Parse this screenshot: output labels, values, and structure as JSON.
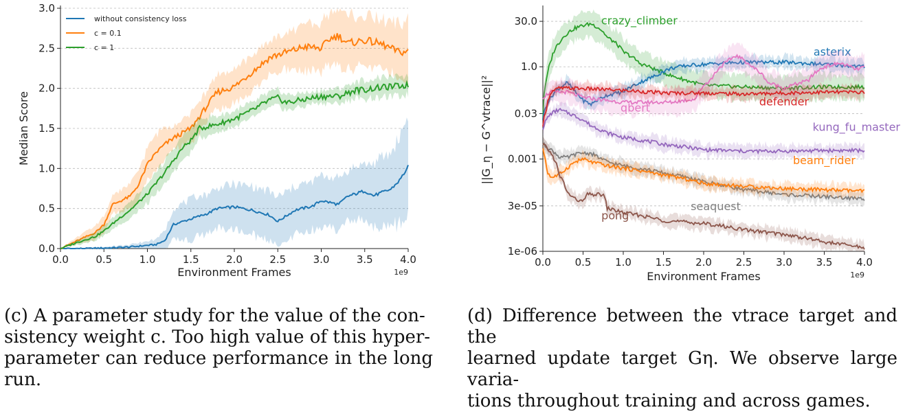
{
  "chart_data": [
    {
      "type": "line",
      "id": "c",
      "xlabel": "Environment Frames",
      "ylabel": "Median Score",
      "x_scale_note": "1e9",
      "xlim": [
        0.0,
        4.0
      ],
      "ylim": [
        0.0,
        3.0
      ],
      "xticks": [
        "0.0",
        "0.5",
        "1.0",
        "1.5",
        "2.0",
        "2.5",
        "3.0",
        "3.5",
        "4.0"
      ],
      "yticks": [
        "0.0",
        "0.5",
        "1.0",
        "1.5",
        "2.0",
        "2.5",
        "3.0"
      ],
      "grid": "horizontal dashed",
      "legend_position": "top-left",
      "series": [
        {
          "name": "without consistency loss",
          "color": "#1f77b4",
          "x": [
            0,
            0.3,
            0.6,
            0.8,
            1.0,
            1.1,
            1.2,
            1.3,
            1.5,
            1.7,
            1.8,
            2.0,
            2.2,
            2.4,
            2.5,
            2.7,
            2.9,
            3.0,
            3.2,
            3.3,
            3.5,
            3.6,
            3.8,
            3.9,
            4.0
          ],
          "y": [
            0,
            0.0,
            0.01,
            0.02,
            0.04,
            0.05,
            0.1,
            0.3,
            0.37,
            0.44,
            0.5,
            0.52,
            0.48,
            0.42,
            0.34,
            0.48,
            0.53,
            0.6,
            0.55,
            0.65,
            0.72,
            0.66,
            0.74,
            0.85,
            1.02
          ],
          "band": [
            0,
            0.01,
            0.02,
            0.03,
            0.05,
            0.07,
            0.12,
            0.2,
            0.25,
            0.25,
            0.25,
            0.28,
            0.3,
            0.3,
            0.3,
            0.3,
            0.3,
            0.32,
            0.32,
            0.32,
            0.35,
            0.4,
            0.45,
            0.55,
            0.65
          ]
        },
        {
          "name": "c = 0.1",
          "color": "#ff7f0e",
          "x": [
            0,
            0.2,
            0.4,
            0.5,
            0.6,
            0.8,
            0.9,
            1.0,
            1.1,
            1.2,
            1.3,
            1.5,
            1.7,
            1.8,
            2.0,
            2.2,
            2.4,
            2.5,
            2.7,
            2.8,
            3.0,
            3.1,
            3.2,
            3.3,
            3.5,
            3.7,
            3.9,
            4.0
          ],
          "y": [
            0,
            0.1,
            0.2,
            0.3,
            0.55,
            0.65,
            0.8,
            1.05,
            1.2,
            1.3,
            1.38,
            1.5,
            1.8,
            1.95,
            2.02,
            2.2,
            2.38,
            2.42,
            2.48,
            2.52,
            2.5,
            2.62,
            2.66,
            2.56,
            2.6,
            2.55,
            2.45,
            2.46
          ],
          "band": [
            0,
            0.05,
            0.08,
            0.1,
            0.12,
            0.15,
            0.18,
            0.2,
            0.22,
            0.22,
            0.15,
            0.18,
            0.2,
            0.2,
            0.22,
            0.22,
            0.22,
            0.22,
            0.25,
            0.28,
            0.3,
            0.32,
            0.35,
            0.35,
            0.3,
            0.3,
            0.35,
            0.4
          ]
        },
        {
          "name": "c = 1",
          "color": "#2ca02c",
          "x": [
            0,
            0.2,
            0.4,
            0.5,
            0.7,
            0.8,
            1.0,
            1.2,
            1.4,
            1.5,
            1.6,
            1.8,
            2.0,
            2.2,
            2.4,
            2.5,
            2.6,
            2.8,
            3.0,
            3.2,
            3.4,
            3.5,
            3.6,
            3.8,
            4.0
          ],
          "y": [
            0,
            0.08,
            0.15,
            0.22,
            0.4,
            0.48,
            0.68,
            0.95,
            1.25,
            1.35,
            1.5,
            1.55,
            1.62,
            1.72,
            1.85,
            1.88,
            1.82,
            1.86,
            1.9,
            1.9,
            1.98,
            1.98,
            2.0,
            2.02,
            2.04
          ],
          "band": [
            0,
            0.03,
            0.05,
            0.06,
            0.08,
            0.1,
            0.12,
            0.15,
            0.15,
            0.15,
            0.12,
            0.1,
            0.1,
            0.1,
            0.1,
            0.1,
            0.1,
            0.08,
            0.08,
            0.1,
            0.1,
            0.12,
            0.12,
            0.12,
            0.12
          ]
        }
      ]
    },
    {
      "type": "line",
      "id": "d",
      "xlabel": "Environment Frames",
      "ylabel": "||G_η − G^vtrace||²",
      "x_scale_note": "1e9",
      "xlim": [
        0.0,
        4.0
      ],
      "yscale": "log",
      "ylim": [
        1e-06,
        80
      ],
      "xticks": [
        "0.0",
        "0.5",
        "1.0",
        "1.5",
        "2.0",
        "2.5",
        "3.0",
        "3.5",
        "4.0"
      ],
      "yticks": [
        {
          "label": "30.0",
          "value": 30
        },
        {
          "label": "1.0",
          "value": 1
        },
        {
          "label": "0.03",
          "value": 0.03
        },
        {
          "label": "0.001",
          "value": 0.001
        },
        {
          "label": "3e-05",
          "value": 3e-05
        },
        {
          "label": "1e-06",
          "value": 1e-06
        }
      ],
      "grid": "horizontal dashed",
      "series": [
        {
          "name": "crazy_climber",
          "color": "#2ca02c",
          "x": [
            0,
            0.05,
            0.1,
            0.2,
            0.3,
            0.4,
            0.5,
            0.6,
            0.7,
            0.8,
            1.0,
            1.2,
            1.4,
            1.6,
            1.8,
            2.0,
            2.5,
            3.0,
            3.5,
            4.0
          ],
          "y": [
            0.02,
            0.4,
            1.5,
            6,
            12,
            18,
            22,
            25,
            18,
            9,
            3,
            1.3,
            0.8,
            0.5,
            0.35,
            0.25,
            0.22,
            0.2,
            0.22,
            0.22
          ],
          "label_at": [
            1.2,
            24
          ]
        },
        {
          "name": "asterix",
          "color": "#1f77b4",
          "x": [
            0,
            0.1,
            0.2,
            0.3,
            0.4,
            0.5,
            0.6,
            0.8,
            1.0,
            1.2,
            1.4,
            1.6,
            1.8,
            2.0,
            2.2,
            2.5,
            3.0,
            3.5,
            4.0
          ],
          "y": [
            0.02,
            0.1,
            0.2,
            0.3,
            0.15,
            0.08,
            0.06,
            0.12,
            0.15,
            0.3,
            0.5,
            0.9,
            1.1,
            1.2,
            1.3,
            1.4,
            1.4,
            1.2,
            1.0
          ],
          "label_at": [
            3.6,
            2.3
          ]
        },
        {
          "name": "qbert",
          "color": "#e377c2",
          "x": [
            0,
            0.1,
            0.3,
            0.5,
            0.8,
            1.0,
            1.3,
            1.6,
            1.9,
            2.1,
            2.3,
            2.4,
            2.6,
            2.8,
            3.0,
            3.3,
            3.5,
            3.7,
            3.9,
            4.0
          ],
          "y": [
            0.1,
            0.15,
            0.15,
            0.1,
            0.08,
            0.07,
            0.07,
            0.07,
            0.09,
            0.4,
            1.5,
            2.3,
            1.0,
            0.3,
            0.2,
            0.35,
            1.0,
            1.3,
            0.8,
            1.0
          ],
          "label_at": [
            1.15,
            0.035
          ]
        },
        {
          "name": "defender",
          "color": "#d62728",
          "x": [
            0,
            0.05,
            0.1,
            0.2,
            0.4,
            0.6,
            0.8,
            1.0,
            1.5,
            2.0,
            2.5,
            3.0,
            3.5,
            4.0
          ],
          "y": [
            0.01,
            0.05,
            0.15,
            0.2,
            0.2,
            0.19,
            0.18,
            0.17,
            0.14,
            0.14,
            0.13,
            0.14,
            0.15,
            0.15
          ],
          "label_at": [
            3.0,
            0.055
          ]
        },
        {
          "name": "kung_fu_master",
          "color": "#9467bd",
          "x": [
            0,
            0.1,
            0.2,
            0.4,
            0.6,
            0.8,
            1.0,
            1.5,
            2.0,
            2.5,
            3.0,
            3.5,
            4.0
          ],
          "y": [
            0.01,
            0.03,
            0.04,
            0.025,
            0.012,
            0.007,
            0.005,
            0.003,
            0.002,
            0.0018,
            0.0018,
            0.0019,
            0.0019
          ],
          "label_at": [
            3.9,
            0.0082
          ]
        },
        {
          "name": "seaquest",
          "color": "#7f7f7f",
          "x": [
            0,
            0.1,
            0.2,
            0.3,
            0.4,
            0.5,
            0.6,
            0.7,
            0.8,
            1.0,
            1.5,
            2.0,
            2.5,
            3.0,
            3.5,
            4.0
          ],
          "y": [
            0.003,
            0.002,
            0.0012,
            0.0011,
            0.0014,
            0.0016,
            0.0015,
            0.0011,
            0.0008,
            0.0006,
            0.00035,
            0.00018,
            0.0001,
            7e-05,
            6e-05,
            5e-05
          ],
          "label_at": [
            2.15,
            2.2e-05
          ]
        },
        {
          "name": "beam_rider",
          "color": "#ff7f0e",
          "x": [
            0,
            0.05,
            0.1,
            0.2,
            0.3,
            0.4,
            0.5,
            0.6,
            0.8,
            1.0,
            1.5,
            2.0,
            2.5,
            3.0,
            3.5,
            4.0
          ],
          "y": [
            0.002,
            0.0004,
            0.00025,
            0.0003,
            0.0005,
            0.0008,
            0.001,
            0.0008,
            0.0006,
            0.0005,
            0.0003,
            0.00016,
            0.00013,
            0.00011,
            0.0001,
            9e-05
          ],
          "label_at": [
            3.5,
            0.00068
          ]
        },
        {
          "name": "pong",
          "color": "#8c564b",
          "x": [
            0,
            0.1,
            0.2,
            0.3,
            0.4,
            0.5,
            0.55,
            0.6,
            0.75,
            0.8,
            1.0,
            1.5,
            2.0,
            2.5,
            3.0,
            3.5,
            4.0
          ],
          "y": [
            0.003,
            0.0015,
            0.0003,
            8e-05,
            5e-05,
            4e-05,
            7e-05,
            7e-05,
            7e-05,
            2.5e-05,
            1.8e-05,
            1e-05,
            8e-06,
            5e-06,
            3.5e-06,
            2e-06,
            1.3e-06
          ],
          "label_at": [
            0.9,
            1.1e-05
          ]
        }
      ]
    }
  ],
  "captions": {
    "c": [
      "(c) A parameter study for the value of the con-",
      "sistency weight c. Too high value of this hyper-",
      "parameter can reduce performance in the long run."
    ],
    "d": [
      "(d) Difference between the vtrace target and the",
      "learned update target Gη. We observe large varia-",
      "tions throughout training and across games."
    ]
  }
}
